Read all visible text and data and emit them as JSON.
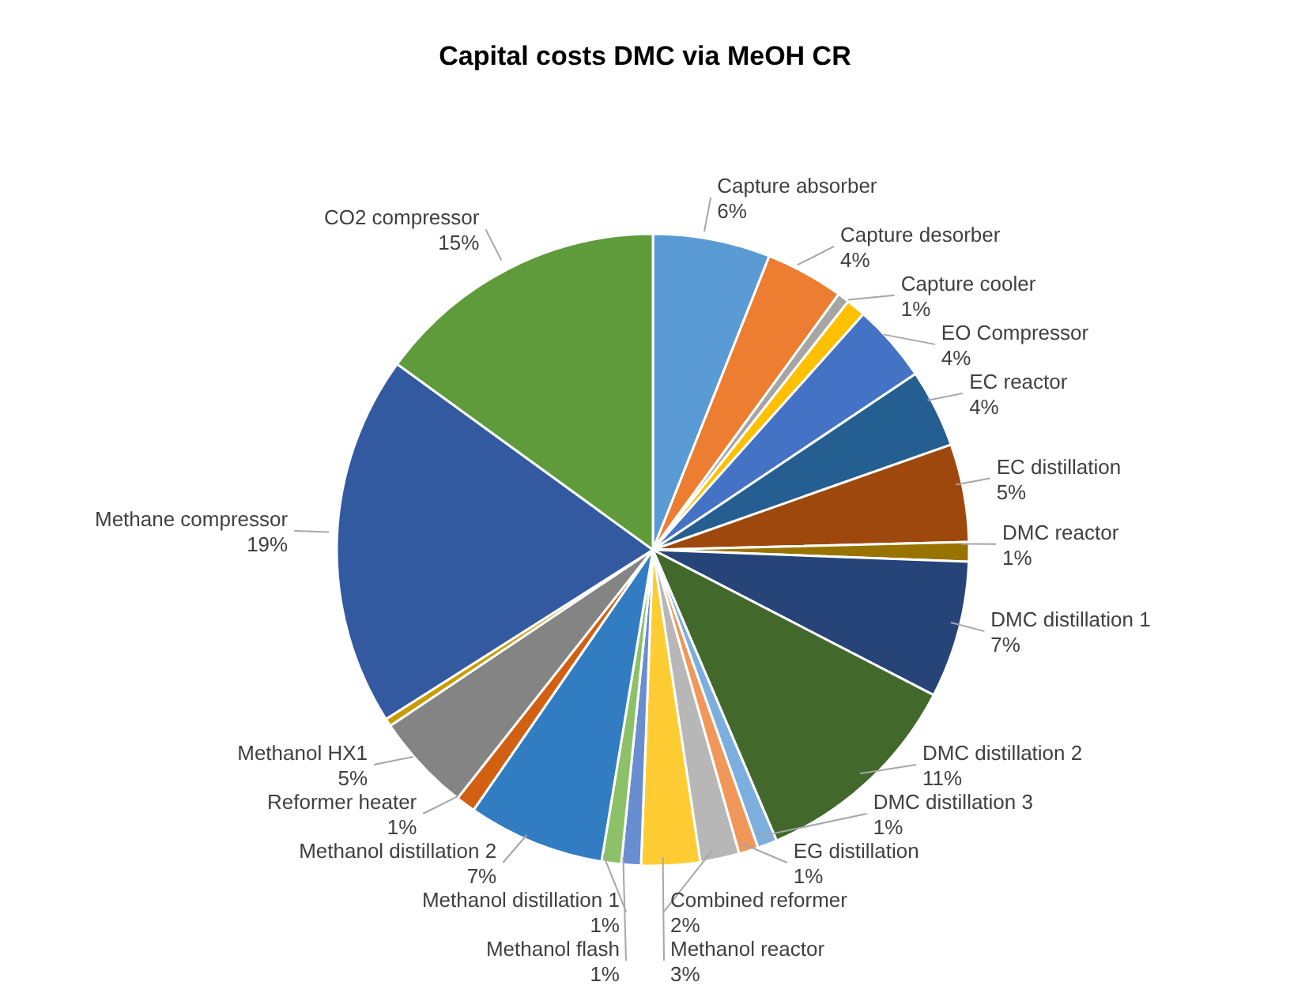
{
  "chart_data": {
    "type": "pie",
    "title": "Capital costs DMC via MeOH CR",
    "categories": [
      "Capture absorber",
      "Capture desorber",
      null,
      "Capture cooler",
      "EO Compressor",
      "EC reactor",
      "EC distillation",
      "DMC reactor",
      "DMC distillation 1",
      "DMC distillation 2",
      "DMC distillation 3",
      "EG distillation",
      "Combined reformer",
      "Methanol reactor",
      "Methanol flash",
      "Methanol distillation 1",
      "Methanol distillation 2",
      "Reformer heater",
      "Methanol HX1",
      null,
      "Methane compressor",
      "CO2 compressor"
    ],
    "values": [
      6,
      4,
      0.6,
      1,
      4,
      4,
      5,
      1,
      7,
      11,
      1,
      1,
      2,
      3,
      1,
      1,
      7,
      1,
      5,
      0.4,
      19,
      15
    ],
    "value_labels": [
      "6%",
      "4%",
      null,
      "1%",
      "4%",
      "4%",
      "5%",
      "1%",
      "7%",
      "11%",
      "1%",
      "1%",
      "2%",
      "3%",
      "1%",
      "1%",
      "7%",
      "1%",
      "5%",
      null,
      "19%",
      "15%"
    ],
    "colors": [
      "#5b9bd5",
      "#ed7d31",
      "#a5a5a5",
      "#ffc000",
      "#4472c4",
      "#255e91",
      "#9e480e",
      "#997300",
      "#264478",
      "#43682b",
      "#7cafdd",
      "#f1975a",
      "#b7b7b7",
      "#ffcd33",
      "#698ed0",
      "#8cc168",
      "#327dc2",
      "#d26012",
      "#848484",
      "#cc9a00",
      "#335aa1",
      "#5f9b3a"
    ],
    "legend": false
  }
}
